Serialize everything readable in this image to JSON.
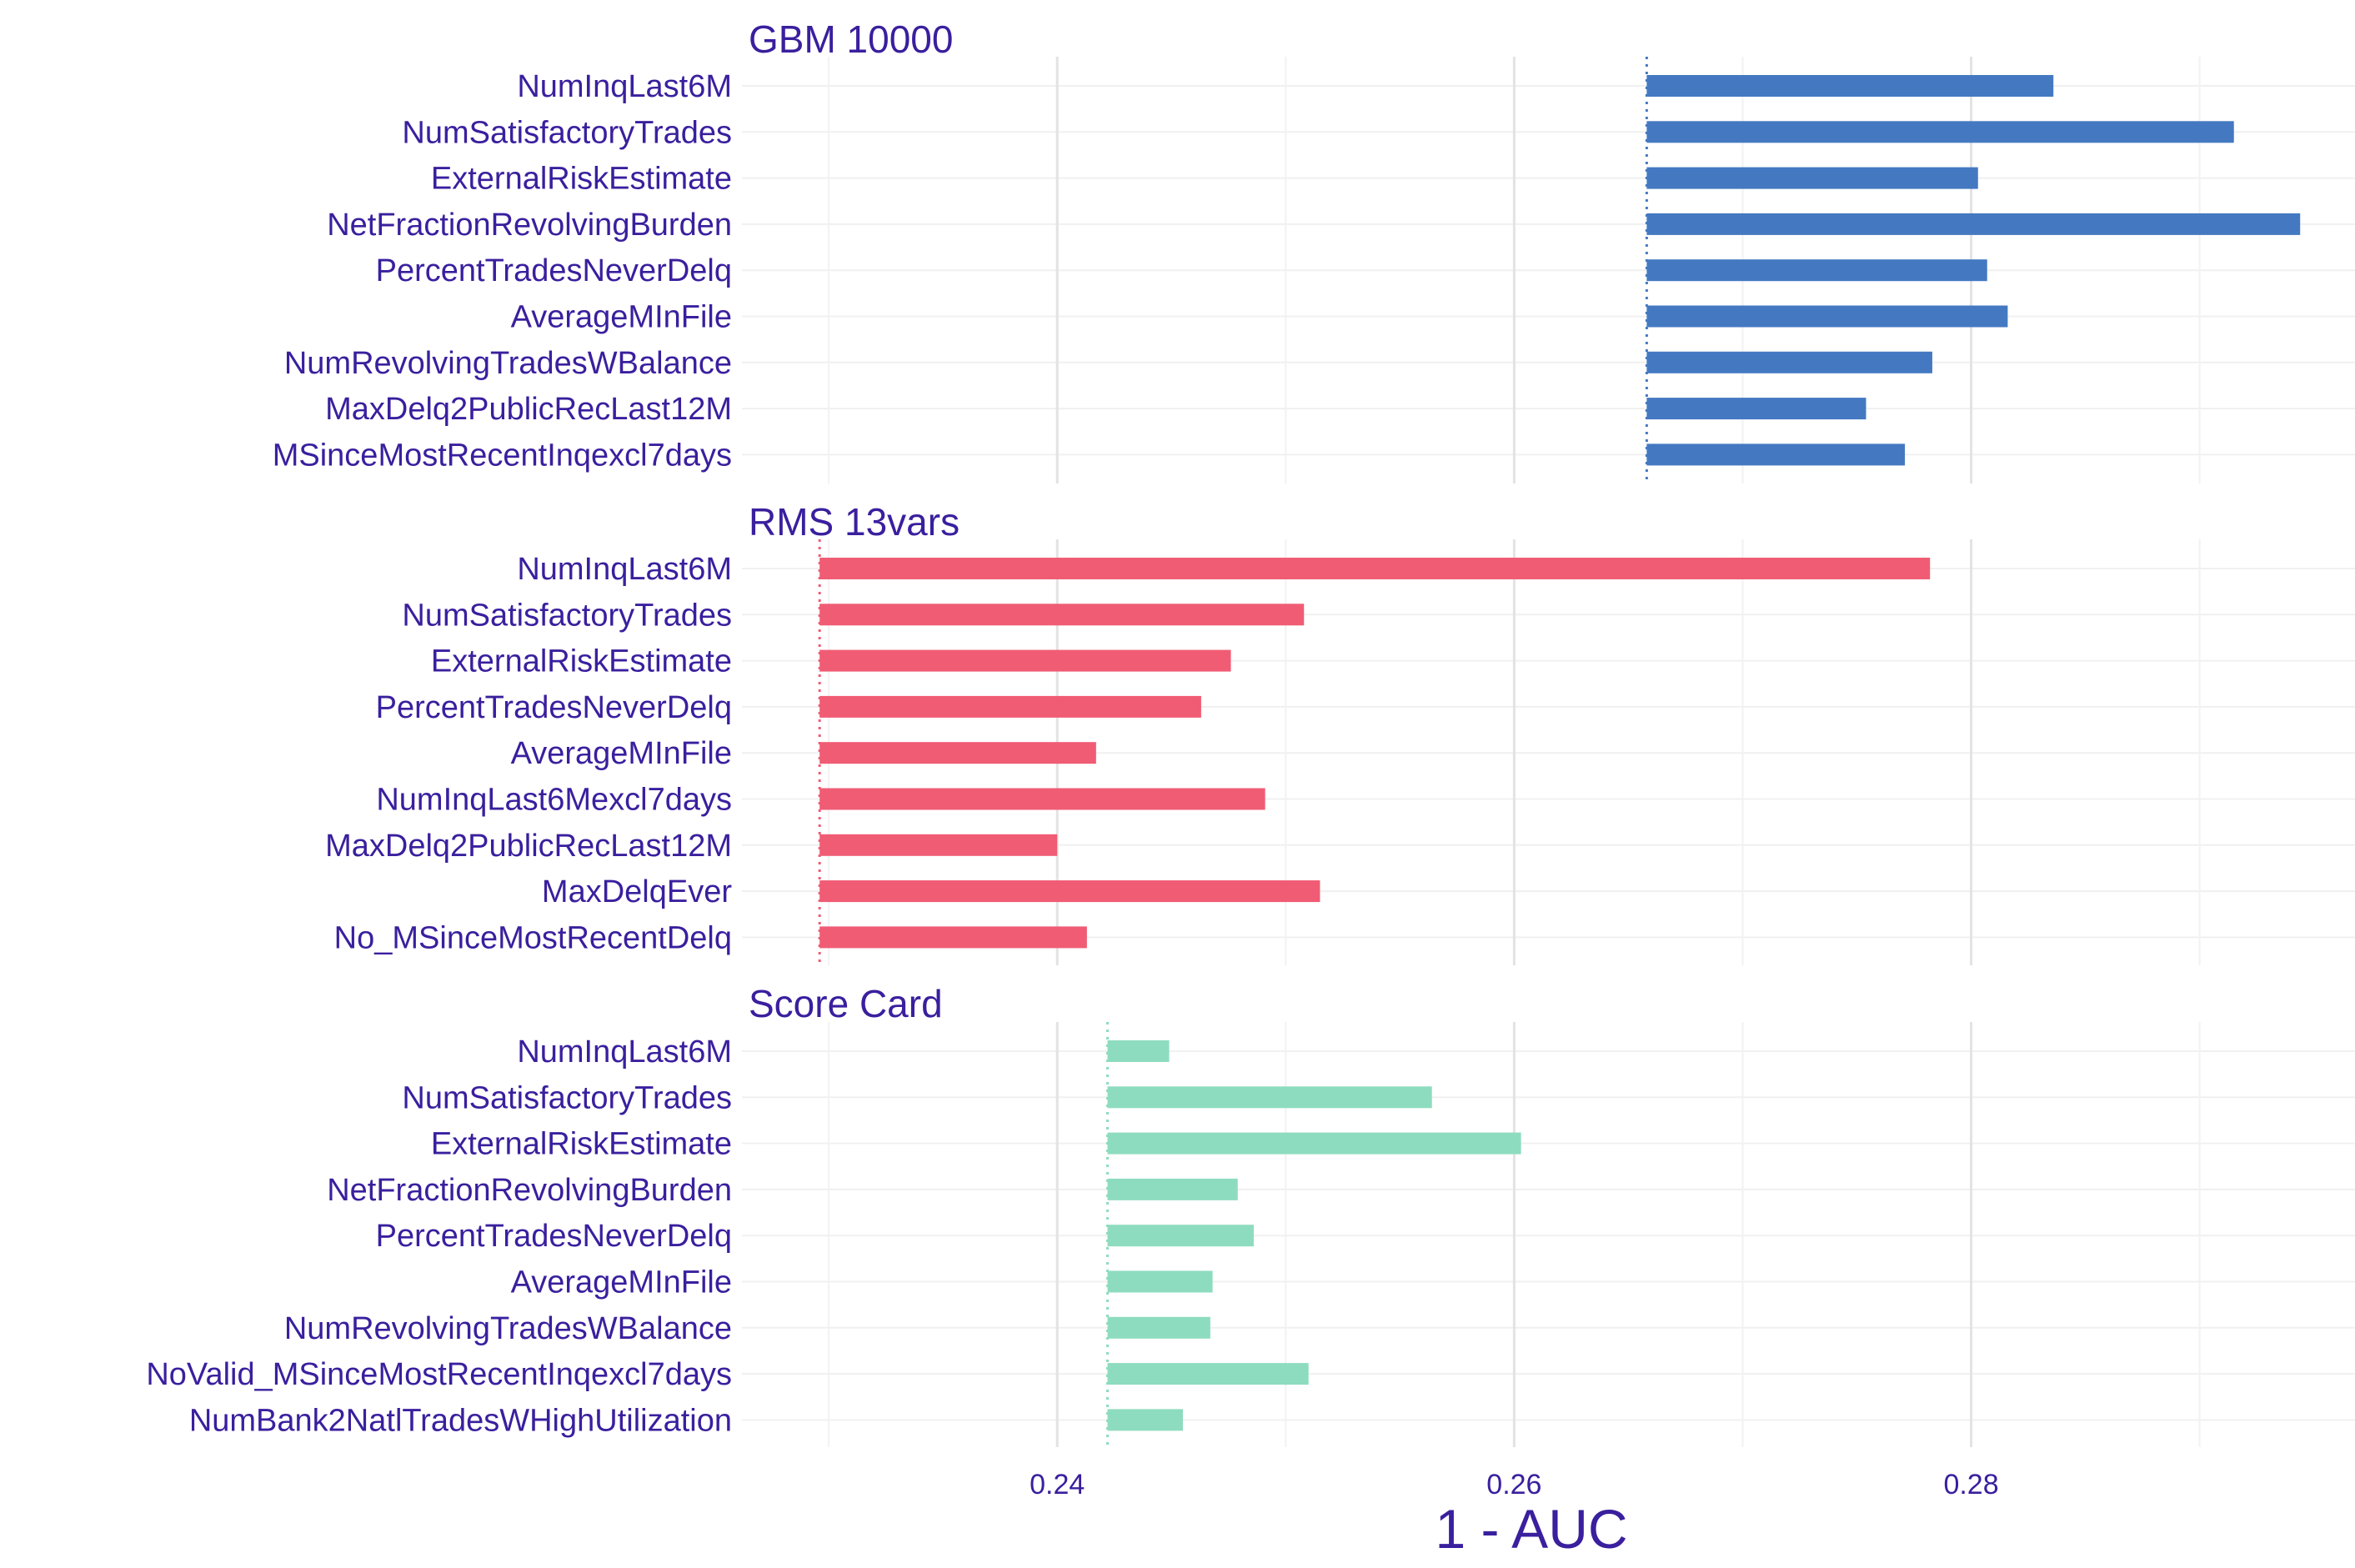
{
  "chart_data": {
    "type": "bar",
    "orientation": "horizontal",
    "title": "",
    "xlabel": "1 - AUC",
    "ylabel": "",
    "xlim": [
      0.2262,
      0.2968
    ],
    "xticks": [
      0.24,
      0.26,
      0.28
    ],
    "xtick_labels": [
      "0.24",
      "0.26",
      "0.28"
    ],
    "grid": true,
    "legend": "none",
    "panels": [
      {
        "name": "GBM 10000",
        "color": "#4479c2",
        "baseline": 0.2658,
        "categories": [
          "NumInqLast6M",
          "NumSatisfactoryTrades",
          "ExternalRiskEstimate",
          "NetFractionRevolvingBurden",
          "PercentTradesNeverDelq",
          "AverageMInFile",
          "NumRevolvingTradesWBalance",
          "MaxDelq2PublicRecLast12M",
          "MSinceMostRecentInqexcl7days"
        ],
        "values": [
          0.2836,
          0.2915,
          0.2803,
          0.2944,
          0.2807,
          0.2816,
          0.2783,
          0.2754,
          0.2771
        ]
      },
      {
        "name": "RMS 13vars",
        "color": "#f05c74",
        "baseline": 0.2296,
        "categories": [
          "NumInqLast6M",
          "NumSatisfactoryTrades",
          "ExternalRiskEstimate",
          "PercentTradesNeverDelq",
          "AverageMInFile",
          "NumInqLast6Mexcl7days",
          "MaxDelq2PublicRecLast12M",
          "MaxDelqEver",
          "No_MSinceMostRecentDelq"
        ],
        "values": [
          0.2782,
          0.2508,
          0.2476,
          0.2463,
          0.2417,
          0.2491,
          0.24,
          0.2515,
          0.2413
        ]
      },
      {
        "name": "Score Card",
        "color": "#8edcbf",
        "baseline": 0.2422,
        "categories": [
          "NumInqLast6M",
          "NumSatisfactoryTrades",
          "ExternalRiskEstimate",
          "NetFractionRevolvingBurden",
          "PercentTradesNeverDelq",
          "AverageMInFile",
          "NumRevolvingTradesWBalance",
          "NoValid_MSinceMostRecentInqexcl7days",
          "NumBank2NatlTradesWHighUtilization"
        ],
        "values": [
          0.2449,
          0.2564,
          0.2603,
          0.2479,
          0.2486,
          0.2468,
          0.2467,
          0.251,
          0.2455
        ]
      }
    ]
  }
}
